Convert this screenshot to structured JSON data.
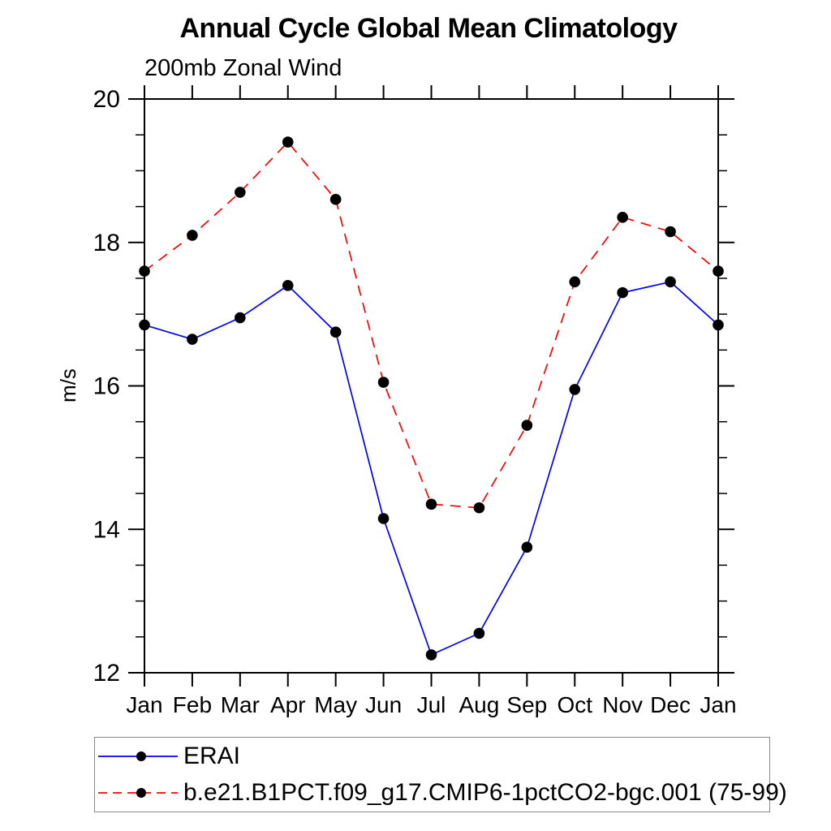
{
  "page": {
    "background": "#ffffff"
  },
  "chart_data": {
    "type": "line",
    "title": "Annual Cycle Global Mean Climatology",
    "subtitle": "200mb Zonal Wind",
    "xlabel": "",
    "ylabel": "m/s",
    "x_categories": [
      "Jan",
      "Feb",
      "Mar",
      "Apr",
      "May",
      "Jun",
      "Jul",
      "Aug",
      "Sep",
      "Oct",
      "Nov",
      "Dec",
      "Jan"
    ],
    "ylim": [
      12,
      20
    ],
    "y_major_ticks": [
      20,
      18,
      16,
      14,
      12
    ],
    "y_minor_step": 0.5,
    "grid": false,
    "legend_position": "bottom",
    "marker": "filled-circle",
    "marker_color": "#000000",
    "axis_color": "#000000",
    "series": [
      {
        "name": "ERAI",
        "color": "#0000ff",
        "style": "solid",
        "values": [
          16.85,
          16.65,
          16.95,
          17.4,
          16.75,
          14.15,
          12.25,
          12.55,
          13.75,
          15.95,
          17.3,
          17.45,
          16.85
        ]
      },
      {
        "name": "b.e21.B1PCT.f09_g17.CMIP6-1pctCO2-bgc.001 (75-99)",
        "color": "#ff0000",
        "style": "dashed",
        "values": [
          17.6,
          18.1,
          18.7,
          19.4,
          18.6,
          16.05,
          14.35,
          14.3,
          15.45,
          17.45,
          18.35,
          18.15,
          17.6
        ]
      }
    ]
  }
}
